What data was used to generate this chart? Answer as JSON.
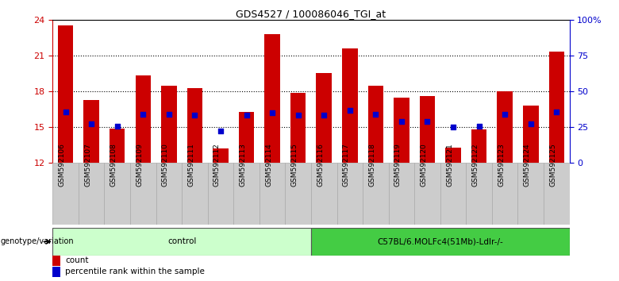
{
  "title": "GDS4527 / 100086046_TGI_at",
  "samples": [
    "GSM592106",
    "GSM592107",
    "GSM592108",
    "GSM592109",
    "GSM592110",
    "GSM592111",
    "GSM592112",
    "GSM592113",
    "GSM592114",
    "GSM592115",
    "GSM592116",
    "GSM592117",
    "GSM592118",
    "GSM592119",
    "GSM592120",
    "GSM592121",
    "GSM592122",
    "GSM592123",
    "GSM592124",
    "GSM592125"
  ],
  "bar_values": [
    23.5,
    17.3,
    14.9,
    19.3,
    18.5,
    18.3,
    13.2,
    16.3,
    22.8,
    17.9,
    19.5,
    21.6,
    18.5,
    17.5,
    17.6,
    13.3,
    14.8,
    18.0,
    16.8,
    21.3
  ],
  "dot_values": [
    16.3,
    15.3,
    15.1,
    16.1,
    16.1,
    16.0,
    14.7,
    16.0,
    16.2,
    16.0,
    16.0,
    16.4,
    16.1,
    15.5,
    15.5,
    15.0,
    15.1,
    16.1,
    15.3,
    16.3
  ],
  "ylim_left": [
    12,
    24
  ],
  "ylim_right": [
    0,
    100
  ],
  "yticks_left": [
    12,
    15,
    18,
    21,
    24
  ],
  "yticks_right": [
    0,
    25,
    50,
    75,
    100
  ],
  "bar_color": "#cc0000",
  "dot_color": "#0000cc",
  "bar_width": 0.6,
  "genotype_groups": [
    {
      "label": "control",
      "start": 0,
      "end": 10,
      "color": "#ccffcc"
    },
    {
      "label": "C57BL/6.MOLFc4(51Mb)-Ldlr-/-",
      "start": 10,
      "end": 20,
      "color": "#44cc44"
    }
  ],
  "genotype_label": "genotype/variation",
  "legend_items": [
    {
      "color": "#cc0000",
      "label": "count"
    },
    {
      "color": "#0000cc",
      "label": "percentile rank within the sample"
    }
  ],
  "background_color": "#ffffff",
  "tick_label_bg": "#cccccc",
  "title_color": "#000000",
  "left_axis_color": "#cc0000",
  "right_axis_color": "#0000cc",
  "grid_yticks": [
    15,
    18,
    21
  ]
}
